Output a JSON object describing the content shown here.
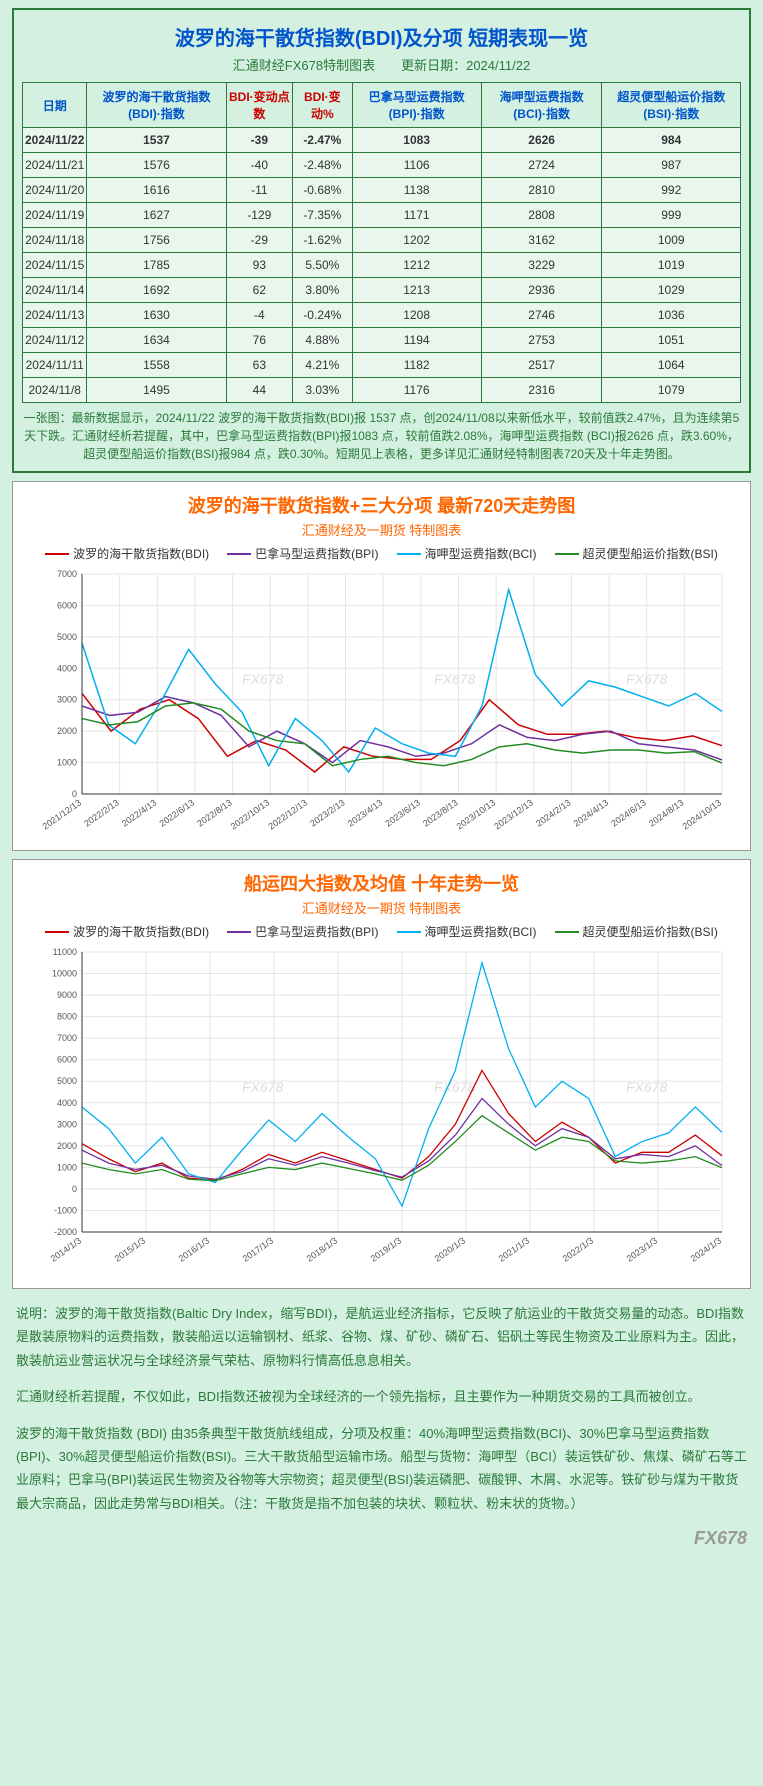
{
  "table_section": {
    "title": "波罗的海干散货指数(BDI)及分项 短期表现一览",
    "subtitle": "汇通财经FX678特制图表　　更新日期：2024/11/22",
    "columns": [
      {
        "label": "日期",
        "color": "#0055cc"
      },
      {
        "label": "波罗的海干散货指数(BDI)·指数",
        "color": "#0055cc"
      },
      {
        "label": "BDI·变动点数",
        "color": "#cc0000"
      },
      {
        "label": "BDI·变动%",
        "color": "#cc0000"
      },
      {
        "label": "巴拿马型运费指数(BPI)·指数",
        "color": "#0055cc"
      },
      {
        "label": "海呷型运费指数(BCI)·指数",
        "color": "#0055cc"
      },
      {
        "label": "超灵便型船运价指数(BSI)·指数",
        "color": "#0055cc"
      }
    ],
    "rows": [
      {
        "date": "2024/11/22",
        "bdi": "1537",
        "chg": "-39",
        "pct": "-2.47%",
        "bpi": "1083",
        "bci": "2626",
        "bsi": "984",
        "highlight": true
      },
      {
        "date": "2024/11/21",
        "bdi": "1576",
        "chg": "-40",
        "pct": "-2.48%",
        "bpi": "1106",
        "bci": "2724",
        "bsi": "987"
      },
      {
        "date": "2024/11/20",
        "bdi": "1616",
        "chg": "-11",
        "pct": "-0.68%",
        "bpi": "1138",
        "bci": "2810",
        "bsi": "992"
      },
      {
        "date": "2024/11/19",
        "bdi": "1627",
        "chg": "-129",
        "pct": "-7.35%",
        "bpi": "1171",
        "bci": "2808",
        "bsi": "999"
      },
      {
        "date": "2024/11/18",
        "bdi": "1756",
        "chg": "-29",
        "pct": "-1.62%",
        "bpi": "1202",
        "bci": "3162",
        "bsi": "1009"
      },
      {
        "date": "2024/11/15",
        "bdi": "1785",
        "chg": "93",
        "pct": "5.50%",
        "bpi": "1212",
        "bci": "3229",
        "bsi": "1019"
      },
      {
        "date": "2024/11/14",
        "bdi": "1692",
        "chg": "62",
        "pct": "3.80%",
        "bpi": "1213",
        "bci": "2936",
        "bsi": "1029"
      },
      {
        "date": "2024/11/13",
        "bdi": "1630",
        "chg": "-4",
        "pct": "-0.24%",
        "bpi": "1208",
        "bci": "2746",
        "bsi": "1036"
      },
      {
        "date": "2024/11/12",
        "bdi": "1634",
        "chg": "76",
        "pct": "4.88%",
        "bpi": "1194",
        "bci": "2753",
        "bsi": "1051"
      },
      {
        "date": "2024/11/11",
        "bdi": "1558",
        "chg": "63",
        "pct": "4.21%",
        "bpi": "1182",
        "bci": "2517",
        "bsi": "1064"
      },
      {
        "date": "2024/11/8",
        "bdi": "1495",
        "chg": "44",
        "pct": "3.03%",
        "bpi": "1176",
        "bci": "2316",
        "bsi": "1079"
      }
    ],
    "summary": "一张图：最新数据显示，2024/11/22 波罗的海干散货指数(BDI)报 1537 点，创2024/11/08以来新低水平，较前值跌2.47%，且为连续第5天下跌。汇通财经析若提醒，其中，巴拿马型运费指数(BPI)报1083 点，较前值跌2.08%，海呷型运费指数 (BCI)报2626 点，跌3.60%，超灵便型船运价指数(BSI)报984 点，跌0.30%。短期见上表格，更多详见汇通财经特制图表720天及十年走势图。"
  },
  "chart720": {
    "title": "波罗的海干散货指数+三大分项 最新720天走势图",
    "subtitle": "汇通财经及一期货 特制图表",
    "background_color": "#ffffff",
    "grid_color": "#e5e5e5",
    "ylim": [
      0,
      7000
    ],
    "ytick_step": 1000,
    "x_labels": [
      "2021/12/13",
      "2022/2/13",
      "2022/4/13",
      "2022/6/13",
      "2022/8/13",
      "2022/10/13",
      "2022/12/13",
      "2023/2/13",
      "2023/4/13",
      "2023/6/13",
      "2023/8/13",
      "2023/10/13",
      "2023/12/13",
      "2024/2/13",
      "2024/4/13",
      "2024/6/13",
      "2024/8/13",
      "2024/10/13"
    ],
    "series": [
      {
        "name": "波罗的海干散货指数(BDI)",
        "color": "#cc0000",
        "data": [
          3200,
          2000,
          2700,
          3000,
          2400,
          1200,
          1700,
          1400,
          700,
          1500,
          1200,
          1100,
          1100,
          1700,
          3000,
          2200,
          1900,
          1900,
          2000,
          1800,
          1700,
          1850,
          1537
        ]
      },
      {
        "name": "巴拿马型运费指数(BPI)",
        "color": "#7030a0",
        "data": [
          2800,
          2500,
          2600,
          3100,
          2900,
          2500,
          1500,
          2000,
          1600,
          1000,
          1700,
          1500,
          1200,
          1300,
          1600,
          2200,
          1800,
          1700,
          1900,
          2000,
          1600,
          1500,
          1400,
          1083
        ]
      },
      {
        "name": "海呷型运费指数(BCI)",
        "color": "#00b0f0",
        "data": [
          4800,
          2200,
          1600,
          3000,
          4600,
          3500,
          2600,
          900,
          2400,
          1700,
          700,
          2100,
          1600,
          1300,
          1200,
          2800,
          6500,
          3800,
          2800,
          3600,
          3400,
          3100,
          2800,
          3200,
          2626
        ]
      },
      {
        "name": "超灵便型船运价指数(BSI)",
        "color": "#228b22",
        "data": [
          2400,
          2200,
          2300,
          2800,
          2900,
          2700,
          2000,
          1700,
          1600,
          900,
          1100,
          1200,
          1000,
          900,
          1100,
          1500,
          1600,
          1400,
          1300,
          1400,
          1400,
          1300,
          1350,
          984
        ]
      }
    ],
    "line_width": 1.5,
    "watermark": "FX678"
  },
  "chart10y": {
    "title": "船运四大指数及均值 十年走势一览",
    "subtitle": "汇通财经及一期货 特制图表",
    "background_color": "#ffffff",
    "grid_color": "#e5e5e5",
    "ylim": [
      -2000,
      11000
    ],
    "yticks": [
      -2000,
      -1000,
      0,
      1000,
      2000,
      3000,
      4000,
      5000,
      6000,
      7000,
      8000,
      9000,
      10000,
      11000
    ],
    "x_labels": [
      "2014/1/3",
      "2015/1/3",
      "2016/1/3",
      "2017/1/3",
      "2018/1/3",
      "2019/1/3",
      "2020/1/3",
      "2021/1/3",
      "2022/1/3",
      "2023/1/3",
      "2024/1/3"
    ],
    "series": [
      {
        "name": "波罗的海干散货指数(BDI)",
        "color": "#cc0000",
        "data": [
          2100,
          1400,
          800,
          1200,
          500,
          400,
          900,
          1600,
          1200,
          1700,
          1300,
          900,
          500,
          1500,
          3000,
          5500,
          3500,
          2200,
          3100,
          2400,
          1200,
          1700,
          1700,
          2500,
          1537
        ]
      },
      {
        "name": "巴拿马型运费指数(BPI)",
        "color": "#7030a0",
        "data": [
          1800,
          1200,
          900,
          1100,
          600,
          450,
          800,
          1400,
          1100,
          1500,
          1200,
          850,
          550,
          1300,
          2500,
          4200,
          3000,
          2000,
          2800,
          2400,
          1400,
          1600,
          1500,
          2000,
          1083
        ]
      },
      {
        "name": "海呷型运费指数(BCI)",
        "color": "#00b0f0",
        "data": [
          3800,
          2800,
          1200,
          2400,
          700,
          300,
          1800,
          3200,
          2200,
          3500,
          2400,
          1400,
          -800,
          2800,
          5500,
          10500,
          6500,
          3800,
          5000,
          4200,
          1500,
          2200,
          2600,
          3800,
          2626
        ]
      },
      {
        "name": "超灵便型船运价指数(BSI)",
        "color": "#228b22",
        "data": [
          1200,
          900,
          700,
          900,
          450,
          380,
          700,
          1000,
          900,
          1200,
          950,
          700,
          400,
          1100,
          2200,
          3400,
          2600,
          1800,
          2400,
          2200,
          1300,
          1200,
          1300,
          1500,
          984
        ]
      }
    ],
    "line_width": 1.3,
    "watermark": "FX678"
  },
  "explanation": {
    "paragraphs": [
      "说明：波罗的海干散货指数(Baltic Dry Index，缩写BDI)，是航运业经济指标，它反映了航运业的干散货交易量的动态。BDI指数是散装原物料的运费指数，散装船运以运输钢材、纸浆、谷物、煤、矿砂、磷矿石、铝矾土等民生物资及工业原料为主。因此，散装航运业营运状况与全球经济景气荣枯、原物料行情高低息息相关。",
      "汇通财经析若提醒，不仅如此，BDI指数还被视为全球经济的一个领先指标，且主要作为一种期货交易的工具而被创立。",
      "波罗的海干散货指数 (BDI) 由35条典型干散货航线组成，分项及权重：40%海呷型运费指数(BCI)、30%巴拿马型运费指数(BPI)、30%超灵便型船运价指数(BSI)。三大干散货船型运输市场。船型与货物：海呷型（BCI）装运铁矿砂、焦煤、磷矿石等工业原料；巴拿马(BPI)装运民生物资及谷物等大宗物资；超灵便型(BSI)装运磷肥、碳酸钾、木屑、水泥等。铁矿砂与煤为干散货最大宗商品，因此走势常与BDI相关。（注：干散货是指不加包装的块状、颗粒状、粉末状的货物。）"
    ],
    "bottom_watermark": "FX678"
  }
}
